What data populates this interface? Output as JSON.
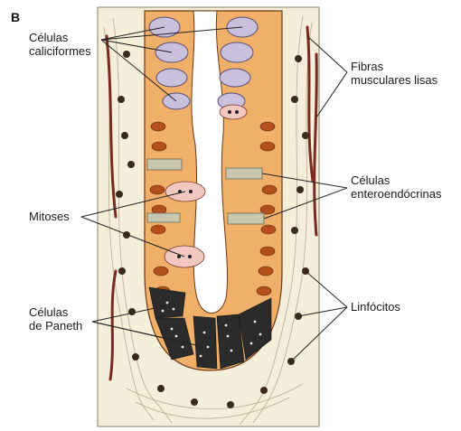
{
  "figure": {
    "panel_letter": "B",
    "labels": {
      "goblet_cells": [
        "Células",
        "caliciformes"
      ],
      "smooth_muscle": [
        "Fibras",
        "musculares lisas"
      ],
      "enteroendocrine": [
        "Células",
        "enteroendócrinas"
      ],
      "mitoses": [
        "Mitoses"
      ],
      "lymphocytes": [
        "Linfócitos"
      ],
      "paneth_cells": [
        "Células",
        "de Paneth"
      ]
    }
  },
  "colors": {
    "background": "#ffffff",
    "lamina_propria": "#f4eedb",
    "epithelium": "#f0b06a",
    "nucleus": "#b4501e",
    "goblet": "#c9c0dc",
    "paneth_granules": "#2b2b2b",
    "enteroendocrine": "#c8c8b0",
    "mitosis": "#f3c8c0",
    "muscle": "#7a2a1e",
    "lymphocyte": "#3a2a1a"
  }
}
